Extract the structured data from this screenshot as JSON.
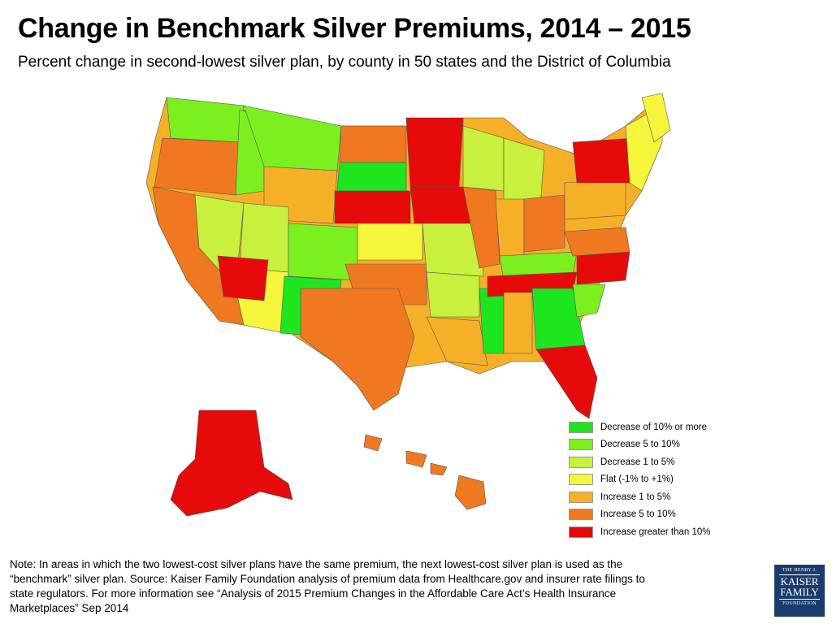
{
  "title": "Change in Benchmark Silver Premiums, 2014 – 2015",
  "subtitle": "Percent change in second-lowest silver plan, by county in 50 states and the District of Columbia",
  "colors": {
    "decrease_10_plus": "#1ee61e",
    "decrease_5_10": "#7bf01e",
    "decrease_1_5": "#c8f03c",
    "flat": "#f5f53c",
    "increase_1_5": "#f5b028",
    "increase_5_10": "#f07820",
    "increase_10_plus": "#e60a0a"
  },
  "legend": [
    {
      "label": "Decrease of 10% or more",
      "color": "#1ee61e"
    },
    {
      "label": "Decrease 5 to 10%",
      "color": "#7bf01e"
    },
    {
      "label": "Decrease 1 to 5%",
      "color": "#c8f03c"
    },
    {
      "label": "Flat (-1% to +1%)",
      "color": "#f5f53c"
    },
    {
      "label": "Increase 1 to  5%",
      "color": "#f5b028"
    },
    {
      "label": "Increase 5 to 10%",
      "color": "#f07820"
    },
    {
      "label": "Increase greater than 10%",
      "color": "#e60a0a"
    }
  ],
  "note": {
    "line1": "Note: In areas in which the two lowest-cost silver plans have the same premium, the next lowest-cost silver plan is used as the",
    "line2": "“benchmark” silver plan.  Source:  Kaiser Family Foundation analysis of premium data from Healthcare.gov and insurer rate filings to",
    "line3": "state regulators. For more information see  “Analysis of 2015 Premium Changes in the Affordable Care Act’s Health Insurance",
    "line4": "Marketplaces” Sep 2014"
  },
  "logo": {
    "top": "THE HENRY J.",
    "line1": "KAISER",
    "line2": "FAMILY",
    "bottom": "FOUNDATION"
  }
}
